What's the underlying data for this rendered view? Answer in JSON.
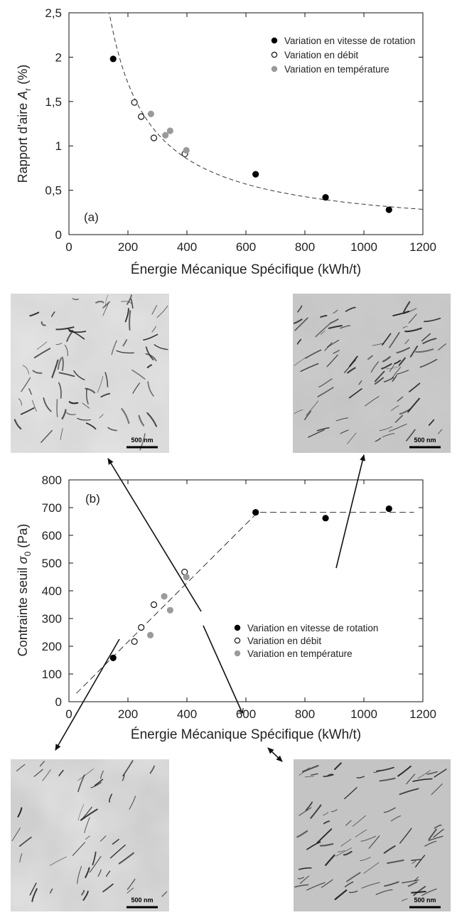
{
  "chart_data": [
    {
      "type": "scatter",
      "panel_label": "(a)",
      "xlabel": "Énergie Mécanique Spécifique (kWh/t)",
      "ylabel_main": "Rapport d'aire ",
      "ylabel_var": "A",
      "ylabel_sub": "r",
      "ylabel_unit": " (%)",
      "xlim": [
        0,
        1200
      ],
      "ylim": [
        0,
        2.5
      ],
      "xticks": [
        0,
        200,
        400,
        600,
        800,
        1000,
        1200
      ],
      "yticks": [
        0,
        0.5,
        1,
        1.5,
        2,
        2.5
      ],
      "ytick_labels": [
        "0",
        "0,5",
        "1",
        "1,5",
        "2",
        "2,5"
      ],
      "legend_position": "top-right",
      "fit_type": "reciprocal-dashed",
      "series": [
        {
          "name": "Variation en vitesse de rotation",
          "marker": "filled-black",
          "x": [
            150,
            633,
            870,
            1085
          ],
          "y": [
            1.98,
            0.68,
            0.42,
            0.28
          ]
        },
        {
          "name": "Variation en débit",
          "marker": "open",
          "x": [
            222,
            245,
            288,
            393
          ],
          "y": [
            1.49,
            1.33,
            1.09,
            0.91
          ]
        },
        {
          "name": "Variation en température",
          "marker": "filled-gray",
          "x": [
            278,
            327,
            343,
            398
          ],
          "y": [
            1.36,
            1.12,
            1.17,
            0.95
          ]
        }
      ]
    },
    {
      "type": "scatter",
      "panel_label": "(b)",
      "xlabel": "Énergie Mécanique Spécifique (kWh/t)",
      "ylabel_main": "Contrainte seuil ",
      "ylabel_var": "σ",
      "ylabel_sub": "0",
      "ylabel_unit": " (Pa)",
      "xlim": [
        0,
        1200
      ],
      "ylim": [
        0,
        800
      ],
      "xticks": [
        0,
        200,
        400,
        600,
        800,
        1000,
        1200
      ],
      "yticks": [
        0,
        100,
        200,
        300,
        400,
        500,
        600,
        700,
        800
      ],
      "ytick_labels": [
        "0",
        "100",
        "200",
        "300",
        "400",
        "500",
        "600",
        "700",
        "800"
      ],
      "legend_position": "bottom-right",
      "fit_type": "linear-then-plateau-dashed",
      "fit_line": {
        "x": [
          25,
          640,
          1170
        ],
        "y": [
          30,
          683,
          683
        ]
      },
      "series": [
        {
          "name": "Variation en vitesse de rotation",
          "marker": "filled-black",
          "x": [
            150,
            633,
            870,
            1085
          ],
          "y": [
            158,
            683,
            662,
            696
          ]
        },
        {
          "name": "Variation en débit",
          "marker": "open",
          "x": [
            222,
            245,
            288,
            392
          ],
          "y": [
            217,
            268,
            350,
            468
          ]
        },
        {
          "name": "Variation en température",
          "marker": "filled-gray",
          "x": [
            276,
            323,
            343,
            398
          ],
          "y": [
            240,
            380,
            330,
            450
          ]
        }
      ]
    }
  ],
  "micrographs": [
    {
      "scale_label": "500 nm"
    },
    {
      "scale_label": "500 nm"
    },
    {
      "scale_label": "500 nm"
    },
    {
      "scale_label": "500 nm"
    }
  ],
  "colors": {
    "black_marker": "#000000",
    "gray_marker": "#9a9a9a",
    "axis": "#111111",
    "fit": "#333333"
  }
}
